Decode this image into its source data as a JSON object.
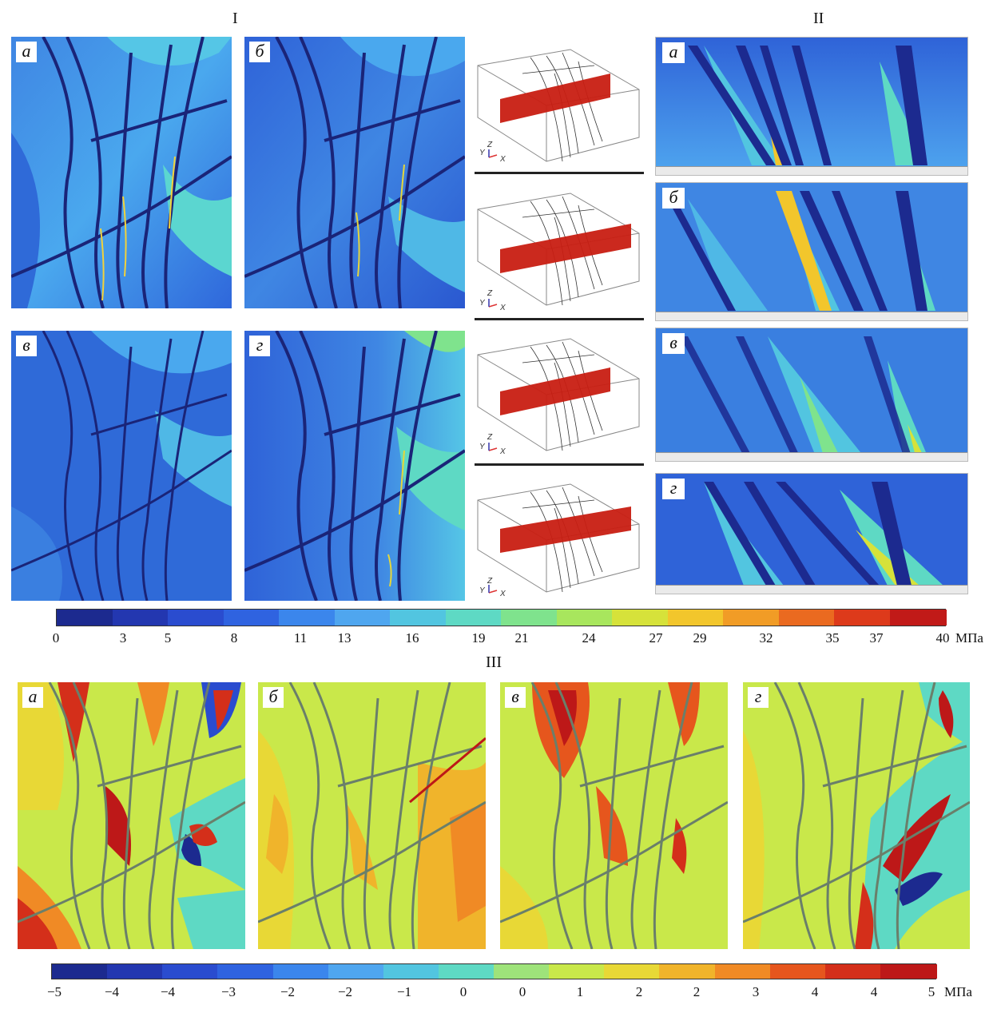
{
  "sections": {
    "s1": "I",
    "s2": "II",
    "s3": "III"
  },
  "panel_labels": {
    "a": "а",
    "b": "б",
    "v": "в",
    "g": "г"
  },
  "axes": {
    "y": "Y",
    "z": "Z",
    "x": "X"
  },
  "colorbar_top": {
    "ticks": [
      "0",
      "3",
      "5",
      "8",
      "11",
      "13",
      "16",
      "19",
      "21",
      "24",
      "27",
      "29",
      "32",
      "35",
      "37",
      "40"
    ],
    "unit": "МПа",
    "colors": [
      "#1c2a8f",
      "#2337b0",
      "#2a4ccf",
      "#2f63e0",
      "#3b86ec",
      "#4fa6ef",
      "#52c5e0",
      "#5ed9c4",
      "#7fe38d",
      "#a8e65d",
      "#d6e23a",
      "#f2c62c",
      "#f19c26",
      "#ea6a20",
      "#dd3a1b",
      "#c11a18"
    ]
  },
  "colorbar_bottom": {
    "ticks": [
      "−5",
      "−4",
      "−4",
      "−3",
      "−2",
      "−2",
      "−1",
      "0",
      "0",
      "1",
      "2",
      "2",
      "3",
      "4",
      "4",
      "5"
    ],
    "unit": "МПа",
    "colors": [
      "#1c2a8f",
      "#2337b0",
      "#2a4ccf",
      "#2f63e0",
      "#3b86ec",
      "#4fa6ef",
      "#52c5e0",
      "#5ed9c4",
      "#9ee37a",
      "#c9e84a",
      "#e8d836",
      "#f0b42b",
      "#f08a25",
      "#e6561d",
      "#d42f1a",
      "#bd1818"
    ]
  }
}
